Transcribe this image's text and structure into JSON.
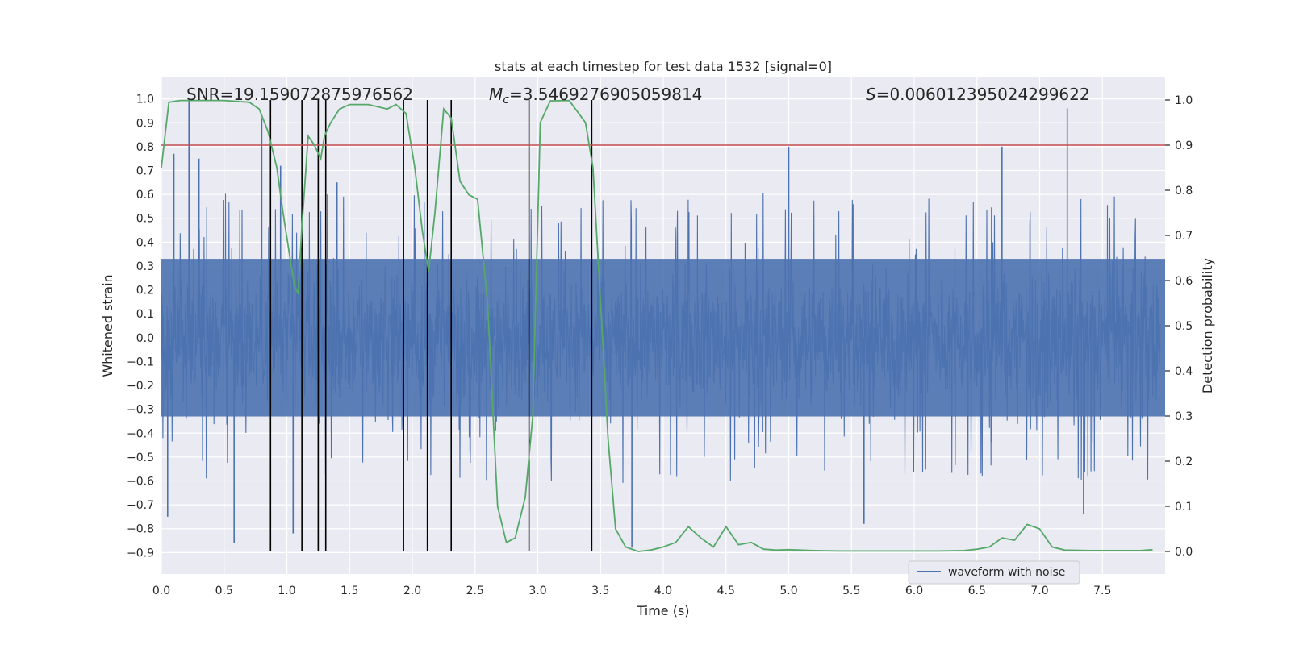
{
  "chart_data": {
    "type": "line",
    "title": "stats at each timestep for test data 1532 [signal=0]",
    "xlabel": "Time (s)",
    "ylabel_left": "Whitened strain",
    "ylabel_right": "Detection probability",
    "xlim": [
      0.0,
      8.0
    ],
    "ylim_left": [
      -0.99,
      1.09
    ],
    "ylim_right": [
      -0.05,
      1.05
    ],
    "x_ticks": [
      0.0,
      0.5,
      1.0,
      1.5,
      2.0,
      2.5,
      3.0,
      3.5,
      4.0,
      4.5,
      5.0,
      5.5,
      6.0,
      6.5,
      7.0,
      7.5
    ],
    "x_tick_labels": [
      "0.0",
      "0.5",
      "1.0",
      "1.5",
      "2.0",
      "2.5",
      "3.0",
      "3.5",
      "4.0",
      "4.5",
      "5.0",
      "5.5",
      "6.0",
      "6.5",
      "7.0",
      "7.5"
    ],
    "y_left_ticks": [
      1.0,
      0.9,
      0.8,
      0.7,
      0.6,
      0.5,
      0.4,
      0.3,
      0.2,
      0.1,
      0.0,
      -0.1,
      -0.2,
      -0.3,
      -0.4,
      -0.5,
      -0.6,
      -0.7,
      -0.8,
      -0.9
    ],
    "y_left_tick_labels": [
      "1.0",
      "0.9",
      "0.8",
      "0.7",
      "0.6",
      "0.5",
      "0.4",
      "0.3",
      "0.2",
      "0.1",
      "0.0",
      "−0.1",
      "−0.2",
      "−0.3",
      "−0.4",
      "−0.5",
      "−0.6",
      "−0.7",
      "−0.8",
      "−0.9"
    ],
    "y_right_ticks": [
      1.0,
      0.9,
      0.8,
      0.7,
      0.6,
      0.5,
      0.4,
      0.3,
      0.2,
      0.1,
      0.0
    ],
    "y_right_tick_labels": [
      "1.0",
      "0.9",
      "0.8",
      "0.7",
      "0.6",
      "0.5",
      "0.4",
      "0.3",
      "0.2",
      "0.1",
      "0.0"
    ],
    "annotations": {
      "snr": "SNR=19.159072875976562",
      "mc_prefix": "M",
      "mc_sub": "c",
      "mc_value": "=3.5469276905059814",
      "s_prefix": "S",
      "s_value": "=0.006012395024299622"
    },
    "threshold_right": 0.9,
    "vertical_lines_x": [
      0.87,
      1.12,
      1.25,
      1.31,
      1.93,
      2.12,
      2.31,
      2.93,
      3.43
    ],
    "waveform": {
      "name": "waveform with noise",
      "duration_s": 8.0,
      "bulk_amplitude": 0.33,
      "spikes": [
        {
          "x": 0.22,
          "y": 1.0
        },
        {
          "x": 0.1,
          "y": 0.77
        },
        {
          "x": 0.3,
          "y": 0.75
        },
        {
          "x": 0.8,
          "y": 0.92
        },
        {
          "x": 0.95,
          "y": 0.72
        },
        {
          "x": 7.22,
          "y": 0.96
        },
        {
          "x": 5.0,
          "y": 0.8
        },
        {
          "x": 6.7,
          "y": 0.8
        },
        {
          "x": 1.4,
          "y": 0.65
        },
        {
          "x": 0.58,
          "y": -0.86
        },
        {
          "x": 1.05,
          "y": -0.82
        },
        {
          "x": 3.75,
          "y": -0.88
        },
        {
          "x": 5.6,
          "y": -0.78
        },
        {
          "x": 0.05,
          "y": -0.75
        },
        {
          "x": 7.35,
          "y": -0.74
        }
      ]
    },
    "probability": {
      "name": "detection probability",
      "x": [
        0.0,
        0.06,
        0.15,
        0.3,
        0.5,
        0.7,
        0.78,
        0.85,
        0.92,
        0.97,
        1.02,
        1.06,
        1.09,
        1.12,
        1.17,
        1.22,
        1.27,
        1.3,
        1.35,
        1.42,
        1.5,
        1.65,
        1.8,
        1.87,
        1.95,
        2.02,
        2.08,
        2.13,
        2.18,
        2.25,
        2.31,
        2.38,
        2.45,
        2.52,
        2.6,
        2.68,
        2.75,
        2.82,
        2.9,
        2.96,
        3.02,
        3.1,
        3.25,
        3.38,
        3.44,
        3.5,
        3.56,
        3.62,
        3.7,
        3.8,
        3.9,
        4.0,
        4.1,
        4.2,
        4.3,
        4.4,
        4.5,
        4.6,
        4.7,
        4.8,
        4.9,
        5.0,
        5.2,
        5.4,
        5.6,
        5.8,
        6.0,
        6.2,
        6.4,
        6.5,
        6.6,
        6.7,
        6.8,
        6.9,
        7.0,
        7.1,
        7.2,
        7.4,
        7.6,
        7.8,
        7.9
      ],
      "y": [
        0.85,
        0.995,
        0.999,
        0.999,
        0.999,
        0.995,
        0.98,
        0.93,
        0.85,
        0.75,
        0.66,
        0.59,
        0.57,
        0.72,
        0.92,
        0.9,
        0.87,
        0.92,
        0.95,
        0.98,
        0.99,
        0.99,
        0.98,
        0.99,
        0.97,
        0.85,
        0.71,
        0.62,
        0.75,
        0.98,
        0.96,
        0.82,
        0.79,
        0.78,
        0.55,
        0.1,
        0.02,
        0.03,
        0.12,
        0.3,
        0.95,
        0.998,
        0.999,
        0.95,
        0.85,
        0.55,
        0.25,
        0.05,
        0.01,
        0.0,
        0.003,
        0.01,
        0.02,
        0.055,
        0.03,
        0.01,
        0.055,
        0.015,
        0.02,
        0.005,
        0.003,
        0.004,
        0.002,
        0.001,
        0.001,
        0.001,
        0.001,
        0.001,
        0.002,
        0.005,
        0.01,
        0.03,
        0.025,
        0.06,
        0.05,
        0.01,
        0.003,
        0.002,
        0.002,
        0.002,
        0.004
      ]
    }
  }
}
